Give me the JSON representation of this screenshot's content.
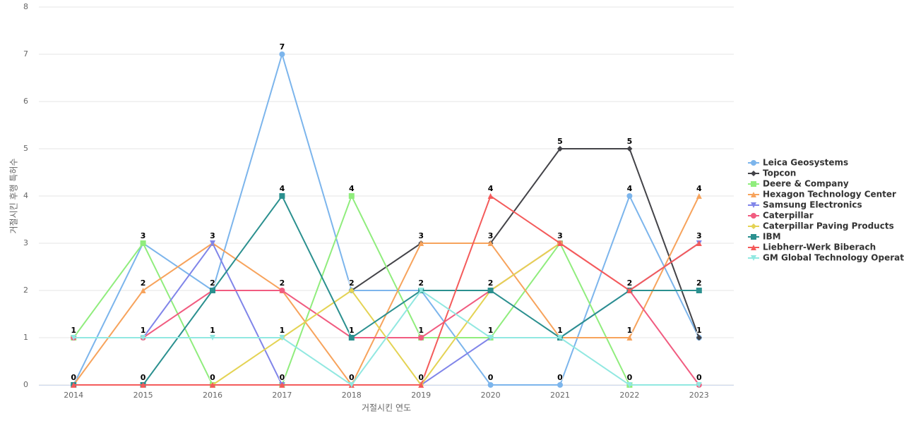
{
  "chart_data": {
    "type": "line",
    "x_label": "거절시킨 연도",
    "y_label": "거절시킨 후행 특허수",
    "categories": [
      "2014",
      "2015",
      "2016",
      "2017",
      "2018",
      "2019",
      "2020",
      "2021",
      "2022",
      "2023"
    ],
    "ylim": [
      0,
      8
    ],
    "yticks": [
      0,
      1,
      2,
      3,
      4,
      5,
      6,
      7,
      8
    ],
    "grid": true,
    "series": [
      {
        "name": "Leica Geosystems",
        "color": "#7cb5ec",
        "symbol": "circle",
        "values": [
          0,
          3,
          2,
          7,
          2,
          2,
          0,
          0,
          4,
          1
        ]
      },
      {
        "name": "Topcon",
        "color": "#434348",
        "symbol": "diamond",
        "values": [
          null,
          null,
          null,
          null,
          2,
          3,
          3,
          5,
          5,
          1
        ]
      },
      {
        "name": "Deere & Company",
        "color": "#90ed7d",
        "symbol": "square",
        "values": [
          1,
          3,
          0,
          0,
          4,
          1,
          1,
          3,
          0,
          null
        ]
      },
      {
        "name": "Hexagon Technology Center",
        "color": "#f7a35c",
        "symbol": "triangle",
        "values": [
          0,
          2,
          3,
          2,
          0,
          3,
          3,
          1,
          1,
          4
        ]
      },
      {
        "name": "Samsung Electronics",
        "color": "#8085e9",
        "symbol": "triangle-down",
        "values": [
          null,
          1,
          3,
          0,
          0,
          0,
          1,
          1,
          2,
          3
        ]
      },
      {
        "name": "Caterpillar",
        "color": "#f15c80",
        "symbol": "circle",
        "values": [
          1,
          1,
          2,
          2,
          1,
          1,
          2,
          3,
          2,
          0
        ]
      },
      {
        "name": "Caterpillar Paving Products",
        "color": "#e4d354",
        "symbol": "diamond",
        "values": [
          null,
          null,
          0,
          1,
          2,
          0,
          2,
          3,
          null,
          null
        ]
      },
      {
        "name": "IBM",
        "color": "#2b908f",
        "symbol": "square",
        "values": [
          0,
          0,
          2,
          4,
          1,
          2,
          2,
          1,
          2,
          2
        ]
      },
      {
        "name": "Liebherr-Werk Biberach",
        "color": "#f45b5b",
        "symbol": "triangle",
        "values": [
          0,
          0,
          0,
          0,
          0,
          0,
          4,
          3,
          2,
          3
        ]
      },
      {
        "name": "GM Global Technology Operat...",
        "color": "#91e8e1",
        "symbol": "triangle-down",
        "values": [
          1,
          1,
          1,
          1,
          0,
          2,
          1,
          1,
          0,
          0
        ]
      }
    ]
  }
}
